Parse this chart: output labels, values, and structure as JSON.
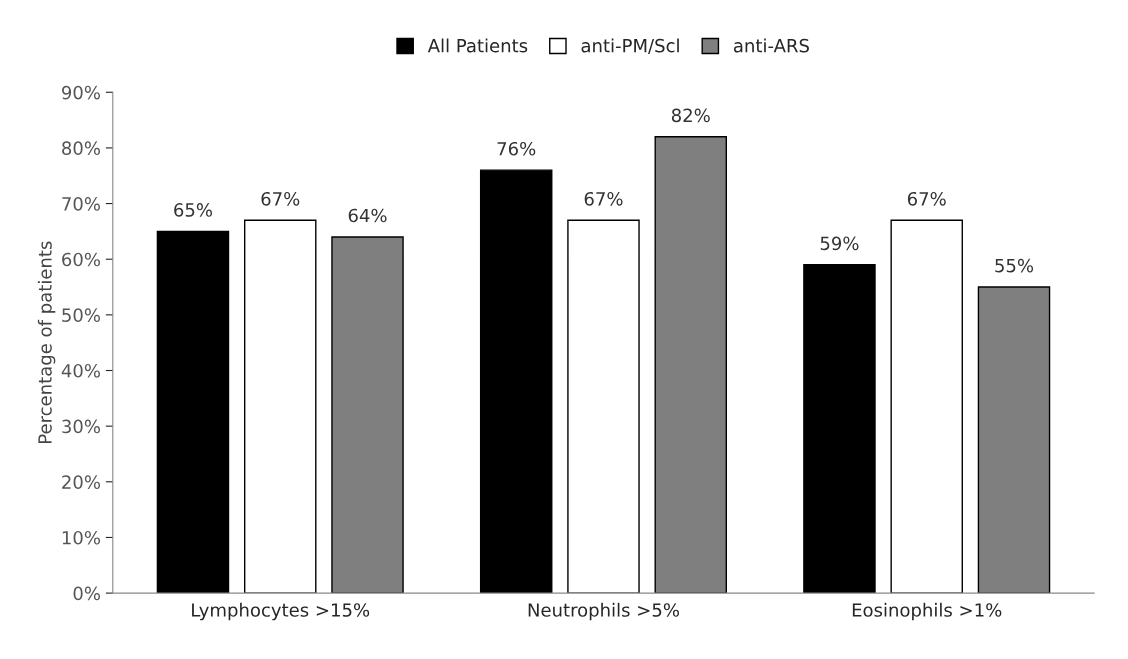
{
  "chart_data": {
    "type": "bar",
    "ylabel": "Percentage of patients",
    "categories": [
      "Lymphocytes >15%",
      "Neutrophils >5%",
      "Eosinophils >1%"
    ],
    "series": [
      {
        "name": "All Patients",
        "color": "#000000",
        "values": [
          65,
          76,
          59
        ],
        "value_labels": [
          "65%",
          "76%",
          "59%"
        ]
      },
      {
        "name": "anti-PM/Scl",
        "color": "#ffffff",
        "values": [
          67,
          67,
          67
        ],
        "value_labels": [
          "67%",
          "67%",
          "67%"
        ]
      },
      {
        "name": "anti-ARS",
        "color": "#7f7f7f",
        "values": [
          64,
          82,
          55
        ],
        "value_labels": [
          "64%",
          "82%",
          "55%"
        ]
      }
    ],
    "ylim": [
      0,
      90
    ],
    "yticks": [
      {
        "value": 0,
        "label": "0%"
      },
      {
        "value": 10,
        "label": "10%"
      },
      {
        "value": 20,
        "label": "20%"
      },
      {
        "value": 30,
        "label": "30%"
      },
      {
        "value": 40,
        "label": "40%"
      },
      {
        "value": 50,
        "label": "50%"
      },
      {
        "value": 60,
        "label": "60%"
      },
      {
        "value": 70,
        "label": "70%"
      },
      {
        "value": 80,
        "label": "80%"
      },
      {
        "value": 90,
        "label": "90%"
      }
    ],
    "grid": false,
    "legend": "top"
  }
}
